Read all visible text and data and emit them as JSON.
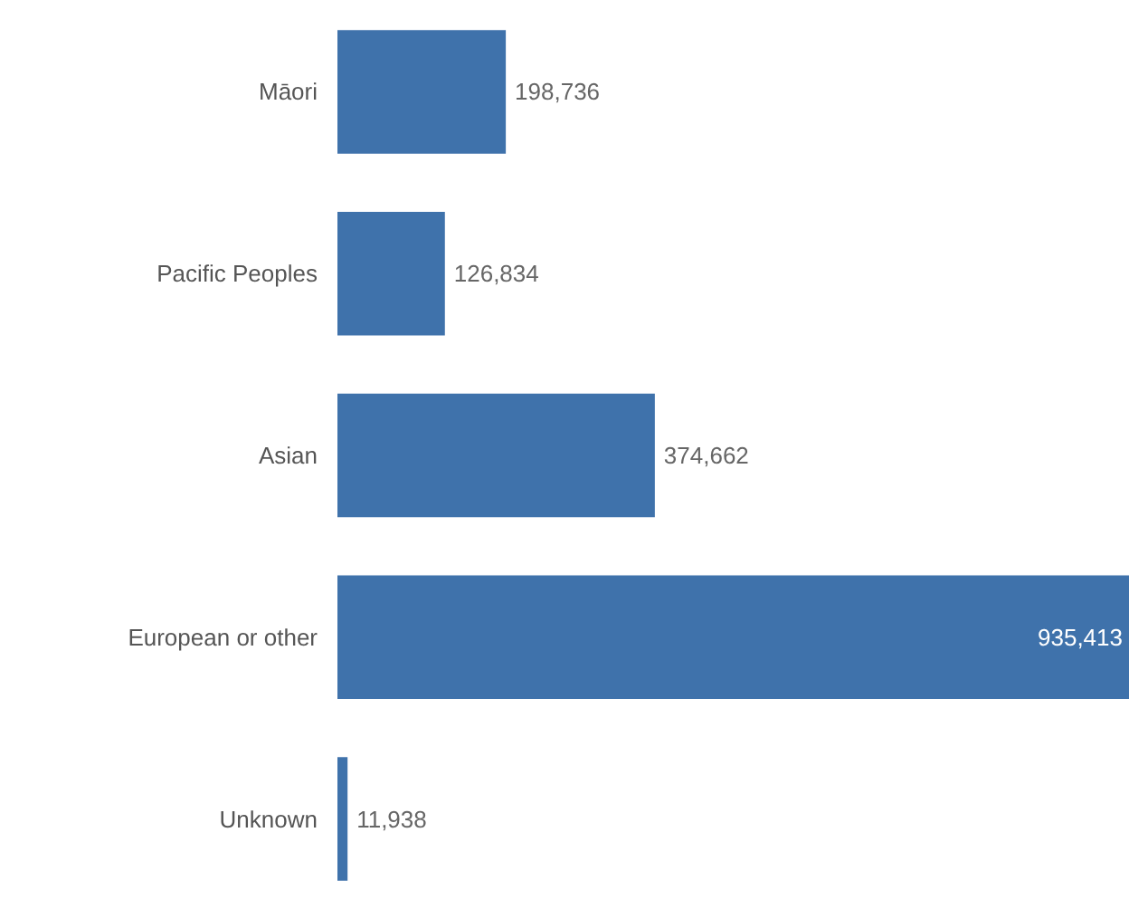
{
  "chart_data": {
    "type": "bar",
    "orientation": "horizontal",
    "categories": [
      "Māori",
      "Pacific Peoples",
      "Asian",
      "European or other",
      "Unknown"
    ],
    "values": [
      198736,
      126834,
      374662,
      935413,
      11938
    ],
    "value_labels": [
      "198,736",
      "126,834",
      "374,662",
      "935,413",
      "11,938"
    ],
    "color": "#3f72ab",
    "xlim": [
      0,
      935413
    ],
    "grid": false,
    "tick_labels": "y"
  }
}
